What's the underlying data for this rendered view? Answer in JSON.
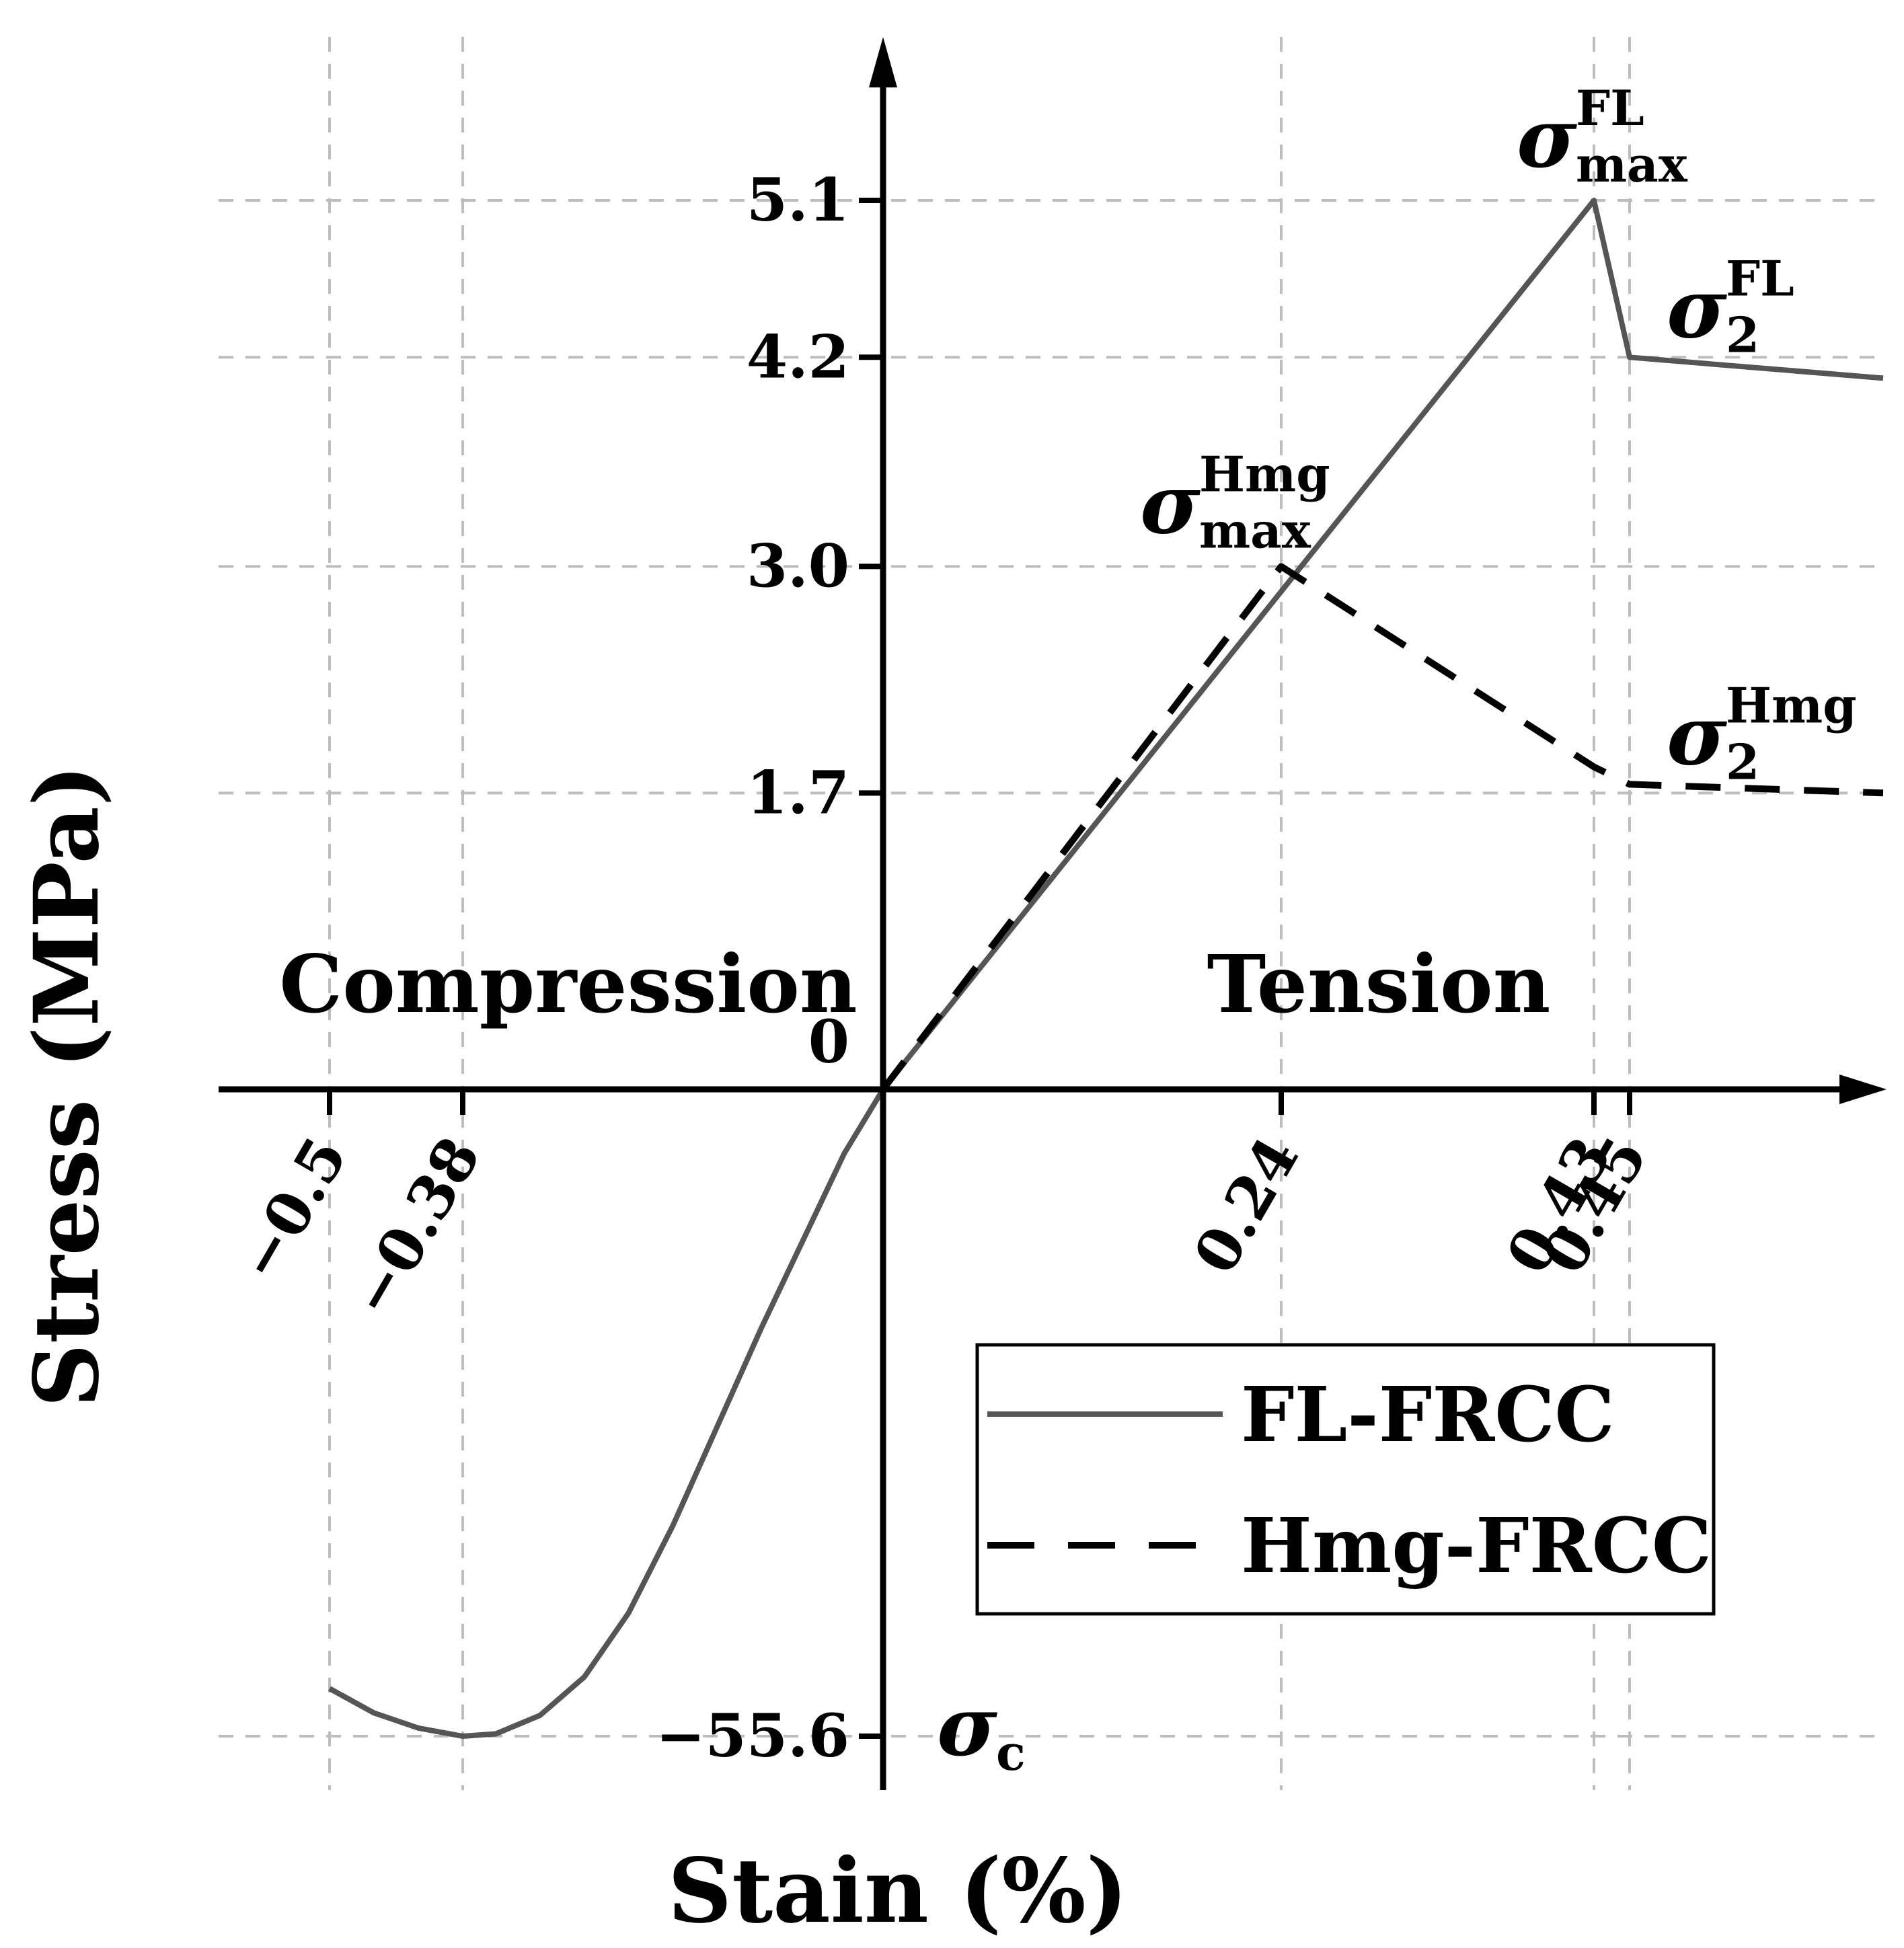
{
  "chart_data": {
    "type": "line",
    "xlabel": "Stain (%)",
    "ylabel": "Stress (MPa)",
    "x_ticks": [
      "−0.5",
      "−0.38",
      "0.24",
      "0.43",
      "0.45"
    ],
    "y_ticks": [
      "5.1",
      "4.2",
      "3.0",
      "1.7",
      "0",
      "−55.6"
    ],
    "grid": true,
    "legend_position": "lower-right",
    "region_labels": {
      "left": "Compression",
      "right": "Tension"
    },
    "series": [
      {
        "name": "FL-FRCC",
        "style": "solid",
        "color": "#555555",
        "points": [
          [
            -0.5,
            -51.5
          ],
          [
            -0.46,
            -53.6
          ],
          [
            -0.42,
            -54.9
          ],
          [
            -0.38,
            -55.6
          ],
          [
            -0.35,
            -55.4
          ],
          [
            -0.31,
            -53.8
          ],
          [
            -0.27,
            -50.5
          ],
          [
            -0.23,
            -45.0
          ],
          [
            -0.19,
            -37.5
          ],
          [
            -0.15,
            -29.0
          ],
          [
            -0.11,
            -20.5
          ],
          [
            -0.07,
            -12.5
          ],
          [
            -0.035,
            -5.5
          ],
          [
            0,
            0
          ],
          [
            0.43,
            5.1
          ],
          [
            0.45,
            4.2
          ],
          [
            0.6,
            4.08
          ]
        ]
      },
      {
        "name": "Hmg-FRCC",
        "style": "dashed",
        "color": "#000000",
        "points": [
          [
            0,
            0
          ],
          [
            0.24,
            3.0
          ],
          [
            0.43,
            1.85
          ],
          [
            0.45,
            1.75
          ],
          [
            0.6,
            1.7
          ]
        ]
      }
    ],
    "annotations": [
      {
        "symbol": "σ",
        "sup": "FL",
        "sub": "max",
        "x": 0.43,
        "y": 5.1
      },
      {
        "symbol": "σ",
        "sup": "FL",
        "sub": "2",
        "x": 0.45,
        "y": 4.2
      },
      {
        "symbol": "σ",
        "sup": "Hmg",
        "sub": "max",
        "x": 0.24,
        "y": 3.0
      },
      {
        "symbol": "σ",
        "sup": "Hmg",
        "sub": "2",
        "x": 0.45,
        "y": 1.75
      },
      {
        "symbol": "σ",
        "sub": "c",
        "x": 0,
        "y": -55.6
      }
    ]
  }
}
